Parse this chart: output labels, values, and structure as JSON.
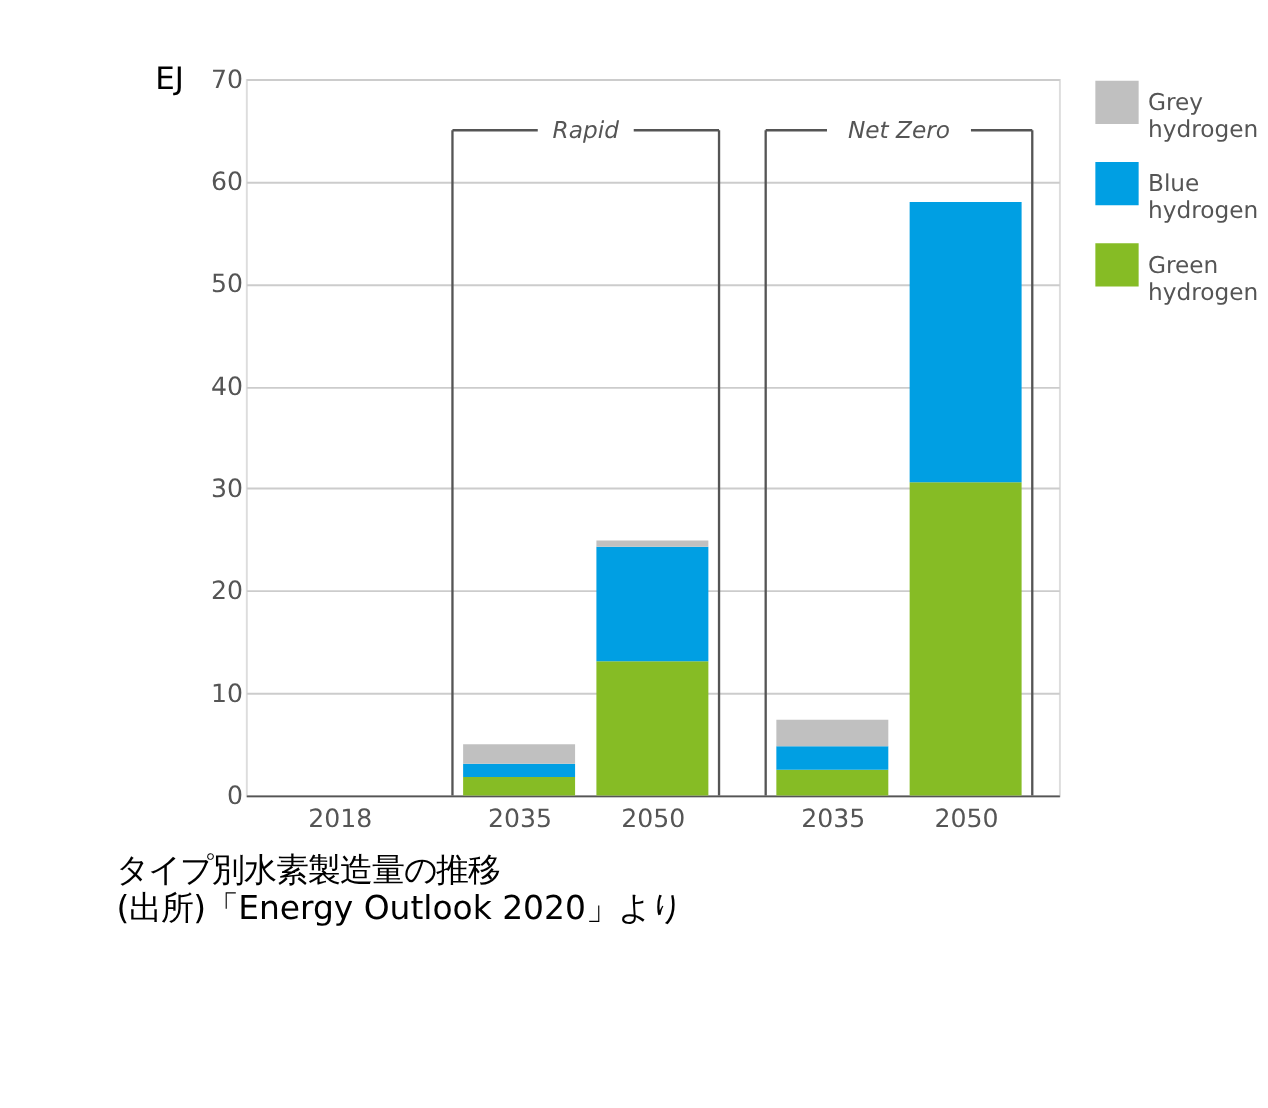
{
  "chart_data": {
    "type": "bar",
    "title": "タイプ別水素製造量の推移",
    "ylabel": "EJ",
    "categories": [
      "2018",
      "2035",
      "2050",
      "2035",
      "2050"
    ],
    "stacked": true,
    "series": [
      {
        "name": "Green hydrogen",
        "color": "#86bc25",
        "values": [
          0,
          1.8,
          13.1,
          2.5,
          30.6
        ]
      },
      {
        "name": "Blue hydrogen",
        "color": "#009fe3",
        "values": [
          0,
          1.3,
          11.2,
          2.3,
          27.4
        ]
      },
      {
        "name": "Grey hydrogen",
        "color": "#c0c0c0",
        "values": [
          0,
          1.9,
          0.6,
          2.6,
          0
        ]
      }
    ],
    "ylim": [
      0,
      70
    ],
    "yticks": [
      0,
      10,
      20,
      30,
      40,
      50,
      60,
      70
    ],
    "grid": "y",
    "legend": "top right",
    "annotations": [
      "Rapid",
      "Net Zero",
      "(出所)「Energy Outlook 2020」より"
    ]
  }
}
